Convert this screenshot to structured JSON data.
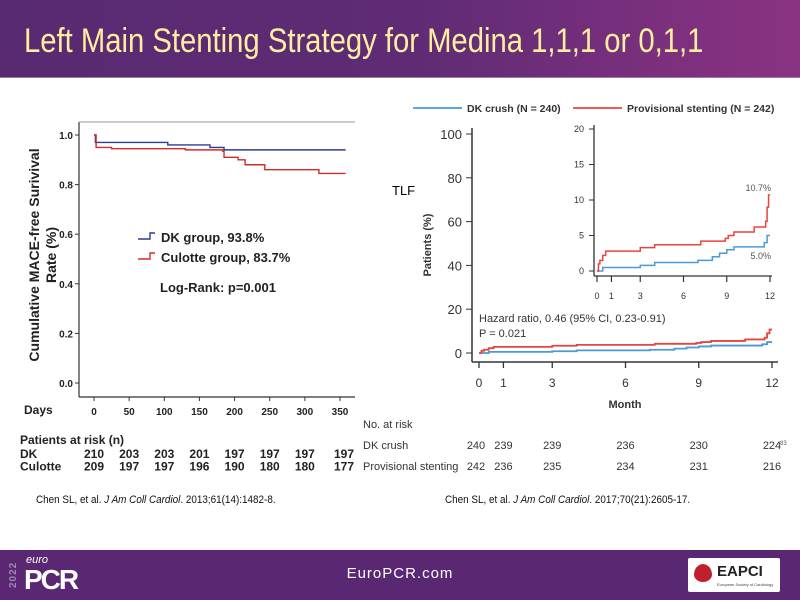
{
  "header": {
    "title": "Left Main Stenting Strategy for Medina 1,1,1 or 0,1,1"
  },
  "footer": {
    "url": "EuroPCR.com",
    "logo_year": "2022",
    "logo_euro": "euro",
    "logo_pcr": "PCR",
    "partner_logo": "EAPCI",
    "partner_sub": "European Society of Cardiology"
  },
  "citations": {
    "left_prefix": "Chen SL, et al. ",
    "left_journal": "J Am Coll Cardiol",
    "left_suffix": ". 2013;61(14):1482-8.",
    "right_prefix": "Chen SL, et al. ",
    "right_journal": "J Am Coll Cardiol",
    "right_suffix": ". 2017;70(21):2605-17."
  },
  "colors": {
    "header": "#5e2b74",
    "title": "#fcef9f",
    "dk_group": "#2e3d94",
    "culotte": "#d42a2a",
    "dk_crush": "#4a9ad8",
    "provisional": "#e8453c"
  },
  "chart_data": [
    {
      "type": "line",
      "step": true,
      "ylabel": "Cumulative MACE-free Surivival Rate (%)",
      "xlabel": "Days",
      "xlim": [
        0,
        360
      ],
      "ylim": [
        0,
        1.05
      ],
      "xticks": [
        0,
        50,
        100,
        150,
        200,
        250,
        300,
        350
      ],
      "yticks": [
        "0.0",
        "0.2",
        "0.4",
        "0.6",
        "0.8",
        "1.0"
      ],
      "series": [
        {
          "name": "DK group, 93.8%",
          "color": "#2e3d94",
          "x": [
            0,
            2,
            100,
            105,
            165,
            185,
            358
          ],
          "y": [
            1.0,
            0.97,
            0.97,
            0.96,
            0.95,
            0.94,
            0.94
          ]
        },
        {
          "name": "Culotte group, 83.7%",
          "color": "#d42a2a",
          "x": [
            0,
            3,
            25,
            130,
            183,
            185,
            205,
            215,
            243,
            320,
            358
          ],
          "y": [
            1.0,
            0.95,
            0.945,
            0.94,
            0.935,
            0.91,
            0.9,
            0.88,
            0.86,
            0.845,
            0.845
          ]
        }
      ],
      "annotation": "Log-Rank: p=0.001",
      "risk_table": {
        "title": "Patients at risk (n)",
        "rows": [
          {
            "label": "DK",
            "values": [
              "210",
              "203",
              "203",
              "201",
              "197",
              "197",
              "197",
              "197"
            ]
          },
          {
            "label": "Culotte",
            "values": [
              "209",
              "197",
              "197",
              "196",
              "190",
              "180",
              "180",
              "177"
            ]
          }
        ]
      }
    },
    {
      "type": "line",
      "step": true,
      "ylabel": "Patients (%)",
      "xlabel": "Month",
      "side_label": "TLF",
      "xlim": [
        0,
        12
      ],
      "ylim": [
        0,
        100
      ],
      "xticks": [
        "0",
        "1",
        "3",
        "6",
        "9",
        "12"
      ],
      "yticks": [
        "0",
        "20",
        "40",
        "60",
        "80",
        "100"
      ],
      "series": [
        {
          "name": "DK crush (N = 240)",
          "color": "#4a9ad8",
          "x": [
            0,
            0.4,
            3,
            4,
            7,
            8,
            8.5,
            9,
            9.5,
            11.6,
            11.8,
            12
          ],
          "y": [
            0,
            0.5,
            0.8,
            1.2,
            1.5,
            2.0,
            2.5,
            3.0,
            3.4,
            4.0,
            5.0,
            5.0
          ]
        },
        {
          "name": "Provisional stenting (N = 242)",
          "color": "#e8453c",
          "x": [
            0,
            0.1,
            0.2,
            0.4,
            0.6,
            3,
            4,
            7.2,
            8.9,
            9.1,
            9.5,
            10.9,
            11.7,
            11.8,
            11.9,
            12
          ],
          "y": [
            0,
            1.0,
            1.5,
            2.2,
            2.8,
            3.3,
            3.7,
            4.2,
            4.6,
            5.0,
            5.5,
            6.2,
            7.0,
            9.0,
            10.7,
            10.7
          ]
        }
      ],
      "annotations": [
        "Hazard ratio, 0.46 (95% CI, 0.23-0.91)",
        "P = 0.021"
      ],
      "inset": {
        "ylim": [
          0,
          20
        ],
        "yticks": [
          "0",
          "5",
          "10",
          "15",
          "20"
        ],
        "xticks": [
          "0",
          "1",
          "3",
          "6",
          "9",
          "12"
        ],
        "labels": [
          "10.7%",
          "5.0%"
        ]
      },
      "risk_table": {
        "title": "No. at risk",
        "rows": [
          {
            "label": "DK crush",
            "values": [
              "240",
              "239",
              "239",
              "236",
              "230",
              "224"
            ]
          },
          {
            "label": "Provisional stenting",
            "values": [
              "242",
              "236",
              "235",
              "234",
              "231",
              "216"
            ]
          }
        ],
        "page_number": "83"
      }
    }
  ]
}
